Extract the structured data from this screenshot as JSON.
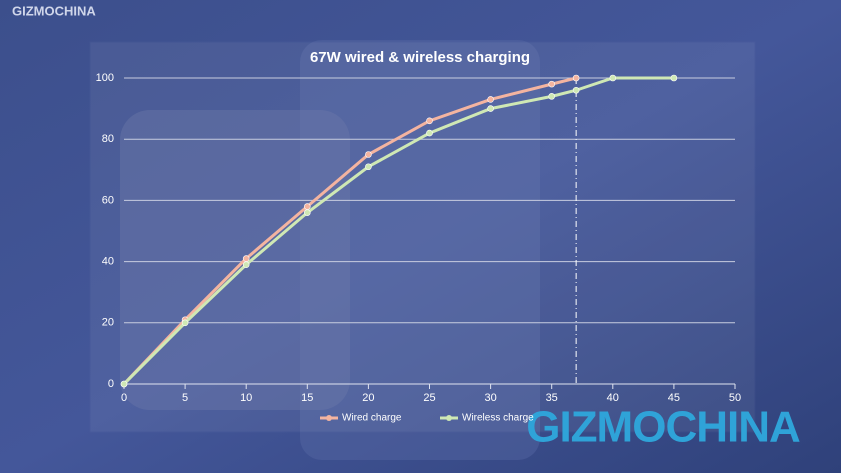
{
  "chart_data": {
    "type": "line",
    "title": "67W wired & wireless charging",
    "series": [
      {
        "name": "Wired charge",
        "color": "#f4b4a0",
        "x": [
          0,
          5,
          10,
          15,
          20,
          25,
          30,
          35,
          37
        ],
        "values": [
          0,
          21,
          41,
          58,
          75,
          86,
          93,
          98,
          100
        ]
      },
      {
        "name": "Wireless charge",
        "color": "#cfe8b4",
        "x": [
          0,
          5,
          10,
          15,
          20,
          25,
          30,
          35,
          37,
          40,
          45
        ],
        "values": [
          0,
          20,
          39,
          56,
          71,
          82,
          90,
          94,
          96,
          100,
          100
        ]
      }
    ],
    "xlim": [
      0,
      50
    ],
    "xticks": [
      0,
      5,
      10,
      15,
      20,
      25,
      30,
      35,
      40,
      45,
      50
    ],
    "ylim": [
      0,
      100
    ],
    "yticks": [
      0,
      20,
      40,
      60,
      80,
      100
    ],
    "grid": true,
    "reference_line_x": 37,
    "legend": "bottom",
    "watermarks": [
      "GIZMOCHINA",
      "GIZMOCHINA"
    ]
  }
}
